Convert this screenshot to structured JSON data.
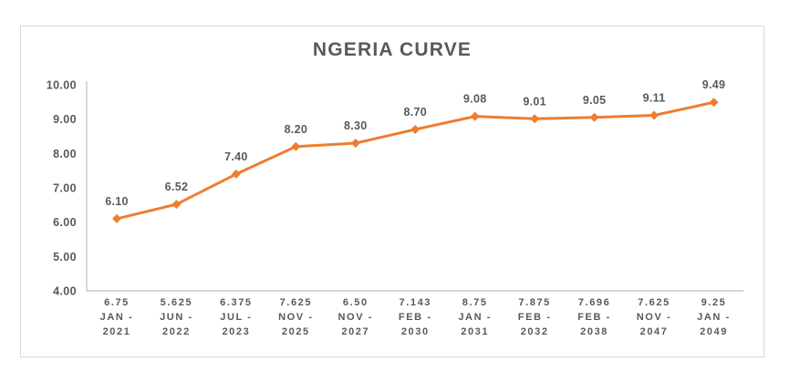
{
  "chart_data": {
    "type": "line",
    "title": "NGERIA CURVE",
    "categories": [
      [
        "6.75",
        "JAN -",
        "2021"
      ],
      [
        "5.625",
        "JUN -",
        "2022"
      ],
      [
        "6.375",
        "JUL -",
        "2023"
      ],
      [
        "7.625",
        "NOV -",
        "2025"
      ],
      [
        "6.50",
        "NOV -",
        "2027"
      ],
      [
        "7.143",
        "FEB -",
        "2030"
      ],
      [
        "8.75",
        "JAN -",
        "2031"
      ],
      [
        "7.875",
        "FEB -",
        "2032"
      ],
      [
        "7.696",
        "FEB -",
        "2038"
      ],
      [
        "7.625",
        "NOV -",
        "2047"
      ],
      [
        "9.25",
        "JAN -",
        "2049"
      ]
    ],
    "values": [
      6.1,
      6.52,
      7.4,
      8.2,
      8.3,
      8.7,
      9.08,
      9.01,
      9.05,
      9.11,
      9.49
    ],
    "value_labels": [
      "6.10",
      "6.52",
      "7.40",
      "8.20",
      "8.30",
      "8.70",
      "9.08",
      "9.01",
      "9.05",
      "9.11",
      "9.49"
    ],
    "y_ticks": [
      "10.00",
      "9.00",
      "8.00",
      "7.00",
      "6.00",
      "5.00",
      "4.00"
    ],
    "ylim": [
      4.0,
      10.0
    ],
    "grid": false,
    "legend": "none",
    "marker": "diamond",
    "colors": {
      "series": "#ED7D31",
      "text": "#595959",
      "axis_line": "#BFBFBF",
      "frame_border": "#D9D9D9"
    }
  }
}
